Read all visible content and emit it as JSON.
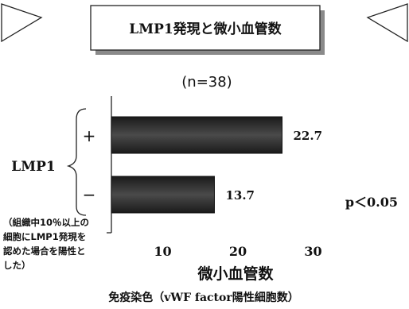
{
  "banner": {
    "title": "LMP1発現と微小血管数"
  },
  "chart_data": {
    "type": "bar",
    "orientation": "horizontal",
    "subtitle": "(n=38)",
    "categories": [
      "+",
      "−"
    ],
    "values": [
      22.7,
      13.7
    ],
    "value_labels": [
      "22.7",
      "13.7"
    ],
    "xticks": [
      "10",
      "20",
      "30"
    ],
    "xtick_values": [
      10,
      20,
      30
    ],
    "xlim": [
      0,
      30
    ],
    "xlabel": "微小血管数",
    "xlabel_sub": "免疫染色（vWF factor陽性細胞数）",
    "ylabel": "LMP1",
    "annotation": "p＜0.05",
    "bar_color": "#2a2a2a"
  },
  "note": {
    "lines": [
      "（組織中10％以上の",
      "細胞にLMP1発現を",
      "認めた場合を陽性と",
      "した）"
    ]
  }
}
